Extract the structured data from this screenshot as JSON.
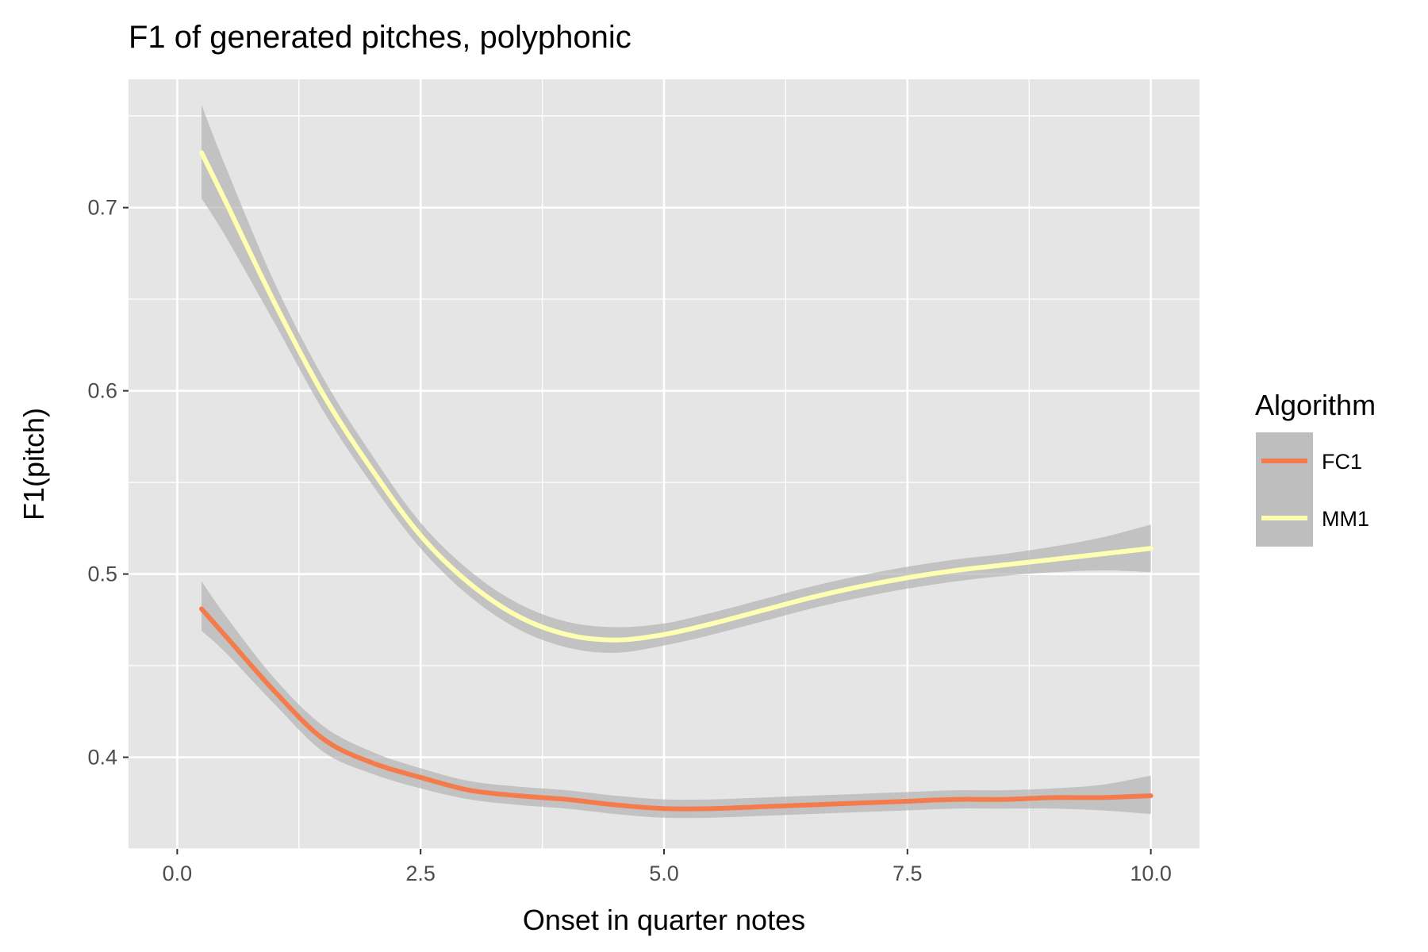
{
  "chart_data": {
    "type": "line",
    "title": "F1 of generated pitches, polyphonic",
    "xlabel": "Onset in quarter notes",
    "ylabel": "F1(pitch)",
    "xlim": [
      -0.5,
      10.5
    ],
    "ylim": [
      0.35,
      0.77
    ],
    "x_ticks": [
      0.0,
      2.5,
      5.0,
      7.5,
      10.0
    ],
    "x_tick_labels": [
      "0.0",
      "2.5",
      "5.0",
      "7.5",
      "10.0"
    ],
    "y_ticks": [
      0.4,
      0.5,
      0.6,
      0.7
    ],
    "y_tick_labels": [
      "0.4",
      "0.5",
      "0.6",
      "0.7"
    ],
    "grid": true,
    "legend": {
      "title": "Algorithm",
      "position": "right"
    },
    "x": [
      0.25,
      0.5,
      1.0,
      1.5,
      2.0,
      2.5,
      3.0,
      3.5,
      4.0,
      4.5,
      5.0,
      5.5,
      6.0,
      6.5,
      7.0,
      7.5,
      8.0,
      8.5,
      9.0,
      9.5,
      10.0
    ],
    "series": [
      {
        "name": "FC1",
        "color": "#f47c4c",
        "values": [
          0.481,
          0.466,
          0.436,
          0.41,
          0.397,
          0.389,
          0.382,
          0.379,
          0.377,
          0.374,
          0.372,
          0.372,
          0.373,
          0.374,
          0.375,
          0.376,
          0.377,
          0.377,
          0.378,
          0.378,
          0.379
        ],
        "lower": [
          0.469,
          0.457,
          0.429,
          0.403,
          0.391,
          0.383,
          0.377,
          0.374,
          0.372,
          0.369,
          0.367,
          0.367,
          0.368,
          0.369,
          0.37,
          0.371,
          0.372,
          0.372,
          0.372,
          0.371,
          0.369
        ],
        "upper": [
          0.496,
          0.477,
          0.443,
          0.417,
          0.403,
          0.394,
          0.387,
          0.384,
          0.382,
          0.379,
          0.377,
          0.377,
          0.378,
          0.379,
          0.38,
          0.381,
          0.382,
          0.382,
          0.383,
          0.385,
          0.39
        ]
      },
      {
        "name": "MM1",
        "color": "#ffffb2",
        "values": [
          0.73,
          0.703,
          0.648,
          0.598,
          0.557,
          0.521,
          0.495,
          0.477,
          0.467,
          0.464,
          0.467,
          0.473,
          0.48,
          0.487,
          0.493,
          0.498,
          0.502,
          0.505,
          0.508,
          0.511,
          0.514
        ],
        "lower": [
          0.705,
          0.684,
          0.637,
          0.589,
          0.549,
          0.514,
          0.488,
          0.47,
          0.46,
          0.457,
          0.461,
          0.467,
          0.474,
          0.481,
          0.487,
          0.492,
          0.496,
          0.499,
          0.501,
          0.502,
          0.501
        ],
        "upper": [
          0.756,
          0.722,
          0.659,
          0.607,
          0.565,
          0.528,
          0.502,
          0.484,
          0.474,
          0.471,
          0.473,
          0.479,
          0.486,
          0.493,
          0.499,
          0.504,
          0.508,
          0.511,
          0.515,
          0.52,
          0.527
        ]
      }
    ],
    "colors": {
      "panel_background": "#e5e5e5",
      "grid": "#ffffff",
      "ribbon": "#b3b3b3",
      "ribbon_opacity": 0.7
    }
  }
}
